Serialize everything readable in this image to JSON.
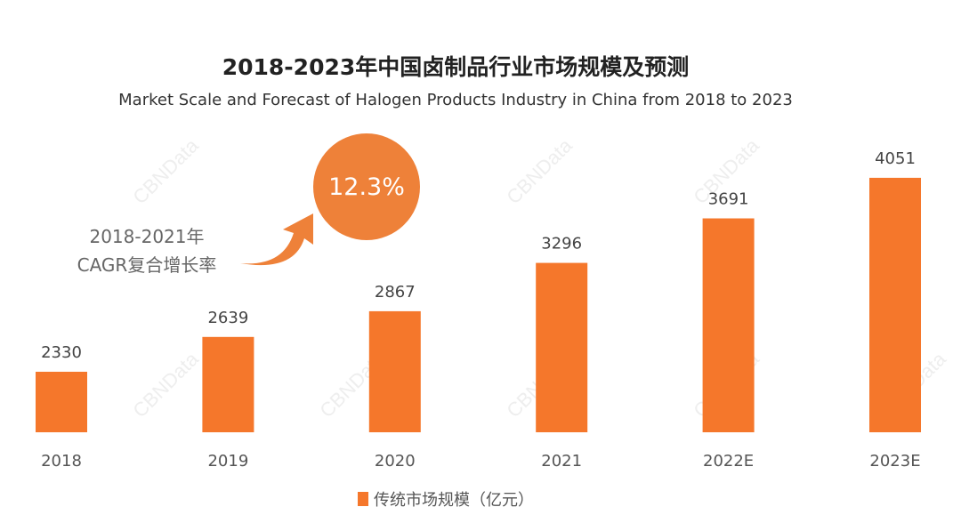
{
  "watermark": "CBNData",
  "chart_data": {
    "type": "bar",
    "title": "2018-2023年中国卤制品行业市场规模及预测",
    "subtitle": "Market Scale and Forecast of Halogen Products Industry in China from 2018  to 2023",
    "categories": [
      "2018",
      "2019",
      "2020",
      "2021",
      "2022E",
      "2023E"
    ],
    "series": [
      {
        "name": "传统市场规模（亿元）",
        "values": [
          2330,
          2639,
          2867,
          3296,
          3691,
          4051
        ]
      }
    ],
    "ylim": [
      1800,
      4200
    ],
    "grid": false,
    "legend": "bottom",
    "annotation": {
      "label_line1": "2018-2021年",
      "label_line2": "CAGR复合增长率",
      "value": "12.3%"
    },
    "colors": {
      "bar": "#F5772B",
      "circle": "#EE8139",
      "arrow": "#EE8139"
    }
  }
}
